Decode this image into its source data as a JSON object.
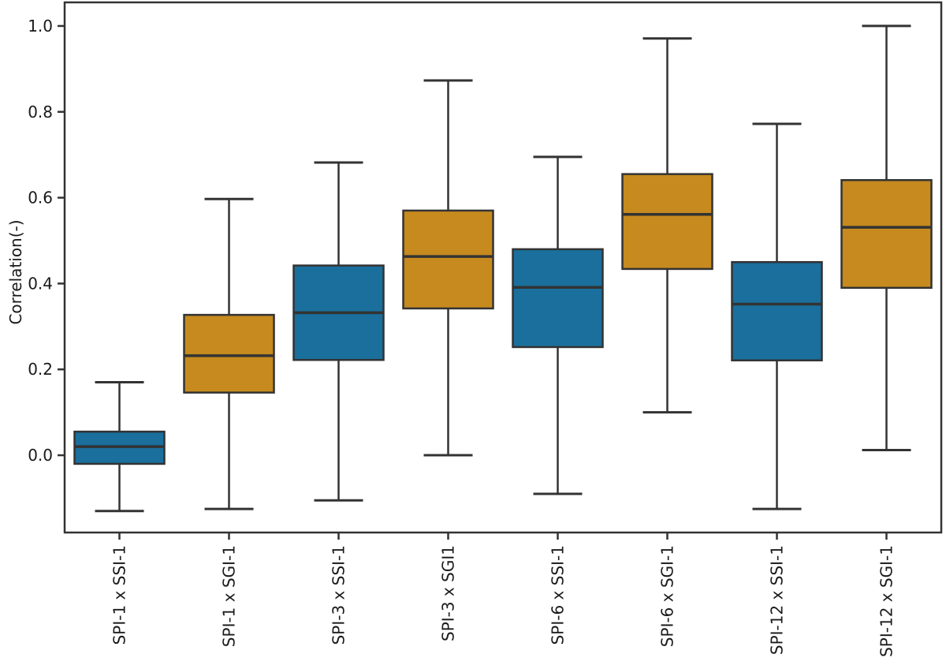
{
  "figure": {
    "background": "#ffffff"
  },
  "colors": {
    "box_blue": "#1A6F9C",
    "box_orange": "#C68A1E",
    "line": "#333333",
    "text": "#1a1a1a"
  },
  "chart_data": {
    "type": "box",
    "title": "",
    "xlabel": "",
    "ylabel": "Correlation(-)",
    "ylim": [
      -0.18,
      1.055
    ],
    "grid": false,
    "legend": false,
    "ytick_values": [
      0.0,
      0.2,
      0.4,
      0.6,
      0.8,
      1.0
    ],
    "ytick_labels": [
      "0.0",
      "0.2",
      "0.4",
      "0.6",
      "0.8",
      "1.0"
    ],
    "categories": [
      "SPI-1 x SSI-1",
      "SPI-1 x SGI-1",
      "SPI-3 x SSI-1",
      "SPI-3 x SGI1",
      "SPI-6 x SSI-1",
      "SPI-6 x SGI-1",
      "SPI-12 x SSI-1",
      "SPI-12 x SGI-1"
    ],
    "boxes": [
      {
        "label": "SPI-1 x SSI-1",
        "color": "blue",
        "whisker_low": -0.13,
        "q1": -0.02,
        "median": 0.02,
        "q3": 0.055,
        "whisker_high": 0.17
      },
      {
        "label": "SPI-1 x SGI-1",
        "color": "orange",
        "whisker_low": -0.125,
        "q1": 0.146,
        "median": 0.232,
        "q3": 0.327,
        "whisker_high": 0.597
      },
      {
        "label": "SPI-3 x SSI-1",
        "color": "blue",
        "whisker_low": -0.105,
        "q1": 0.222,
        "median": 0.332,
        "q3": 0.442,
        "whisker_high": 0.682
      },
      {
        "label": "SPI-3 x SGI1",
        "color": "orange",
        "whisker_low": 0.0,
        "q1": 0.342,
        "median": 0.463,
        "q3": 0.57,
        "whisker_high": 0.873
      },
      {
        "label": "SPI-6 x SSI-1",
        "color": "blue",
        "whisker_low": -0.09,
        "q1": 0.252,
        "median": 0.391,
        "q3": 0.48,
        "whisker_high": 0.695
      },
      {
        "label": "SPI-6 x SGI-1",
        "color": "orange",
        "whisker_low": 0.1,
        "q1": 0.434,
        "median": 0.561,
        "q3": 0.655,
        "whisker_high": 0.971
      },
      {
        "label": "SPI-12 x SSI-1",
        "color": "blue",
        "whisker_low": -0.125,
        "q1": 0.221,
        "median": 0.352,
        "q3": 0.45,
        "whisker_high": 0.772
      },
      {
        "label": "SPI-12 x SGI-1",
        "color": "orange",
        "whisker_low": 0.012,
        "q1": 0.39,
        "median": 0.531,
        "q3": 0.641,
        "whisker_high": 1.0
      }
    ]
  }
}
